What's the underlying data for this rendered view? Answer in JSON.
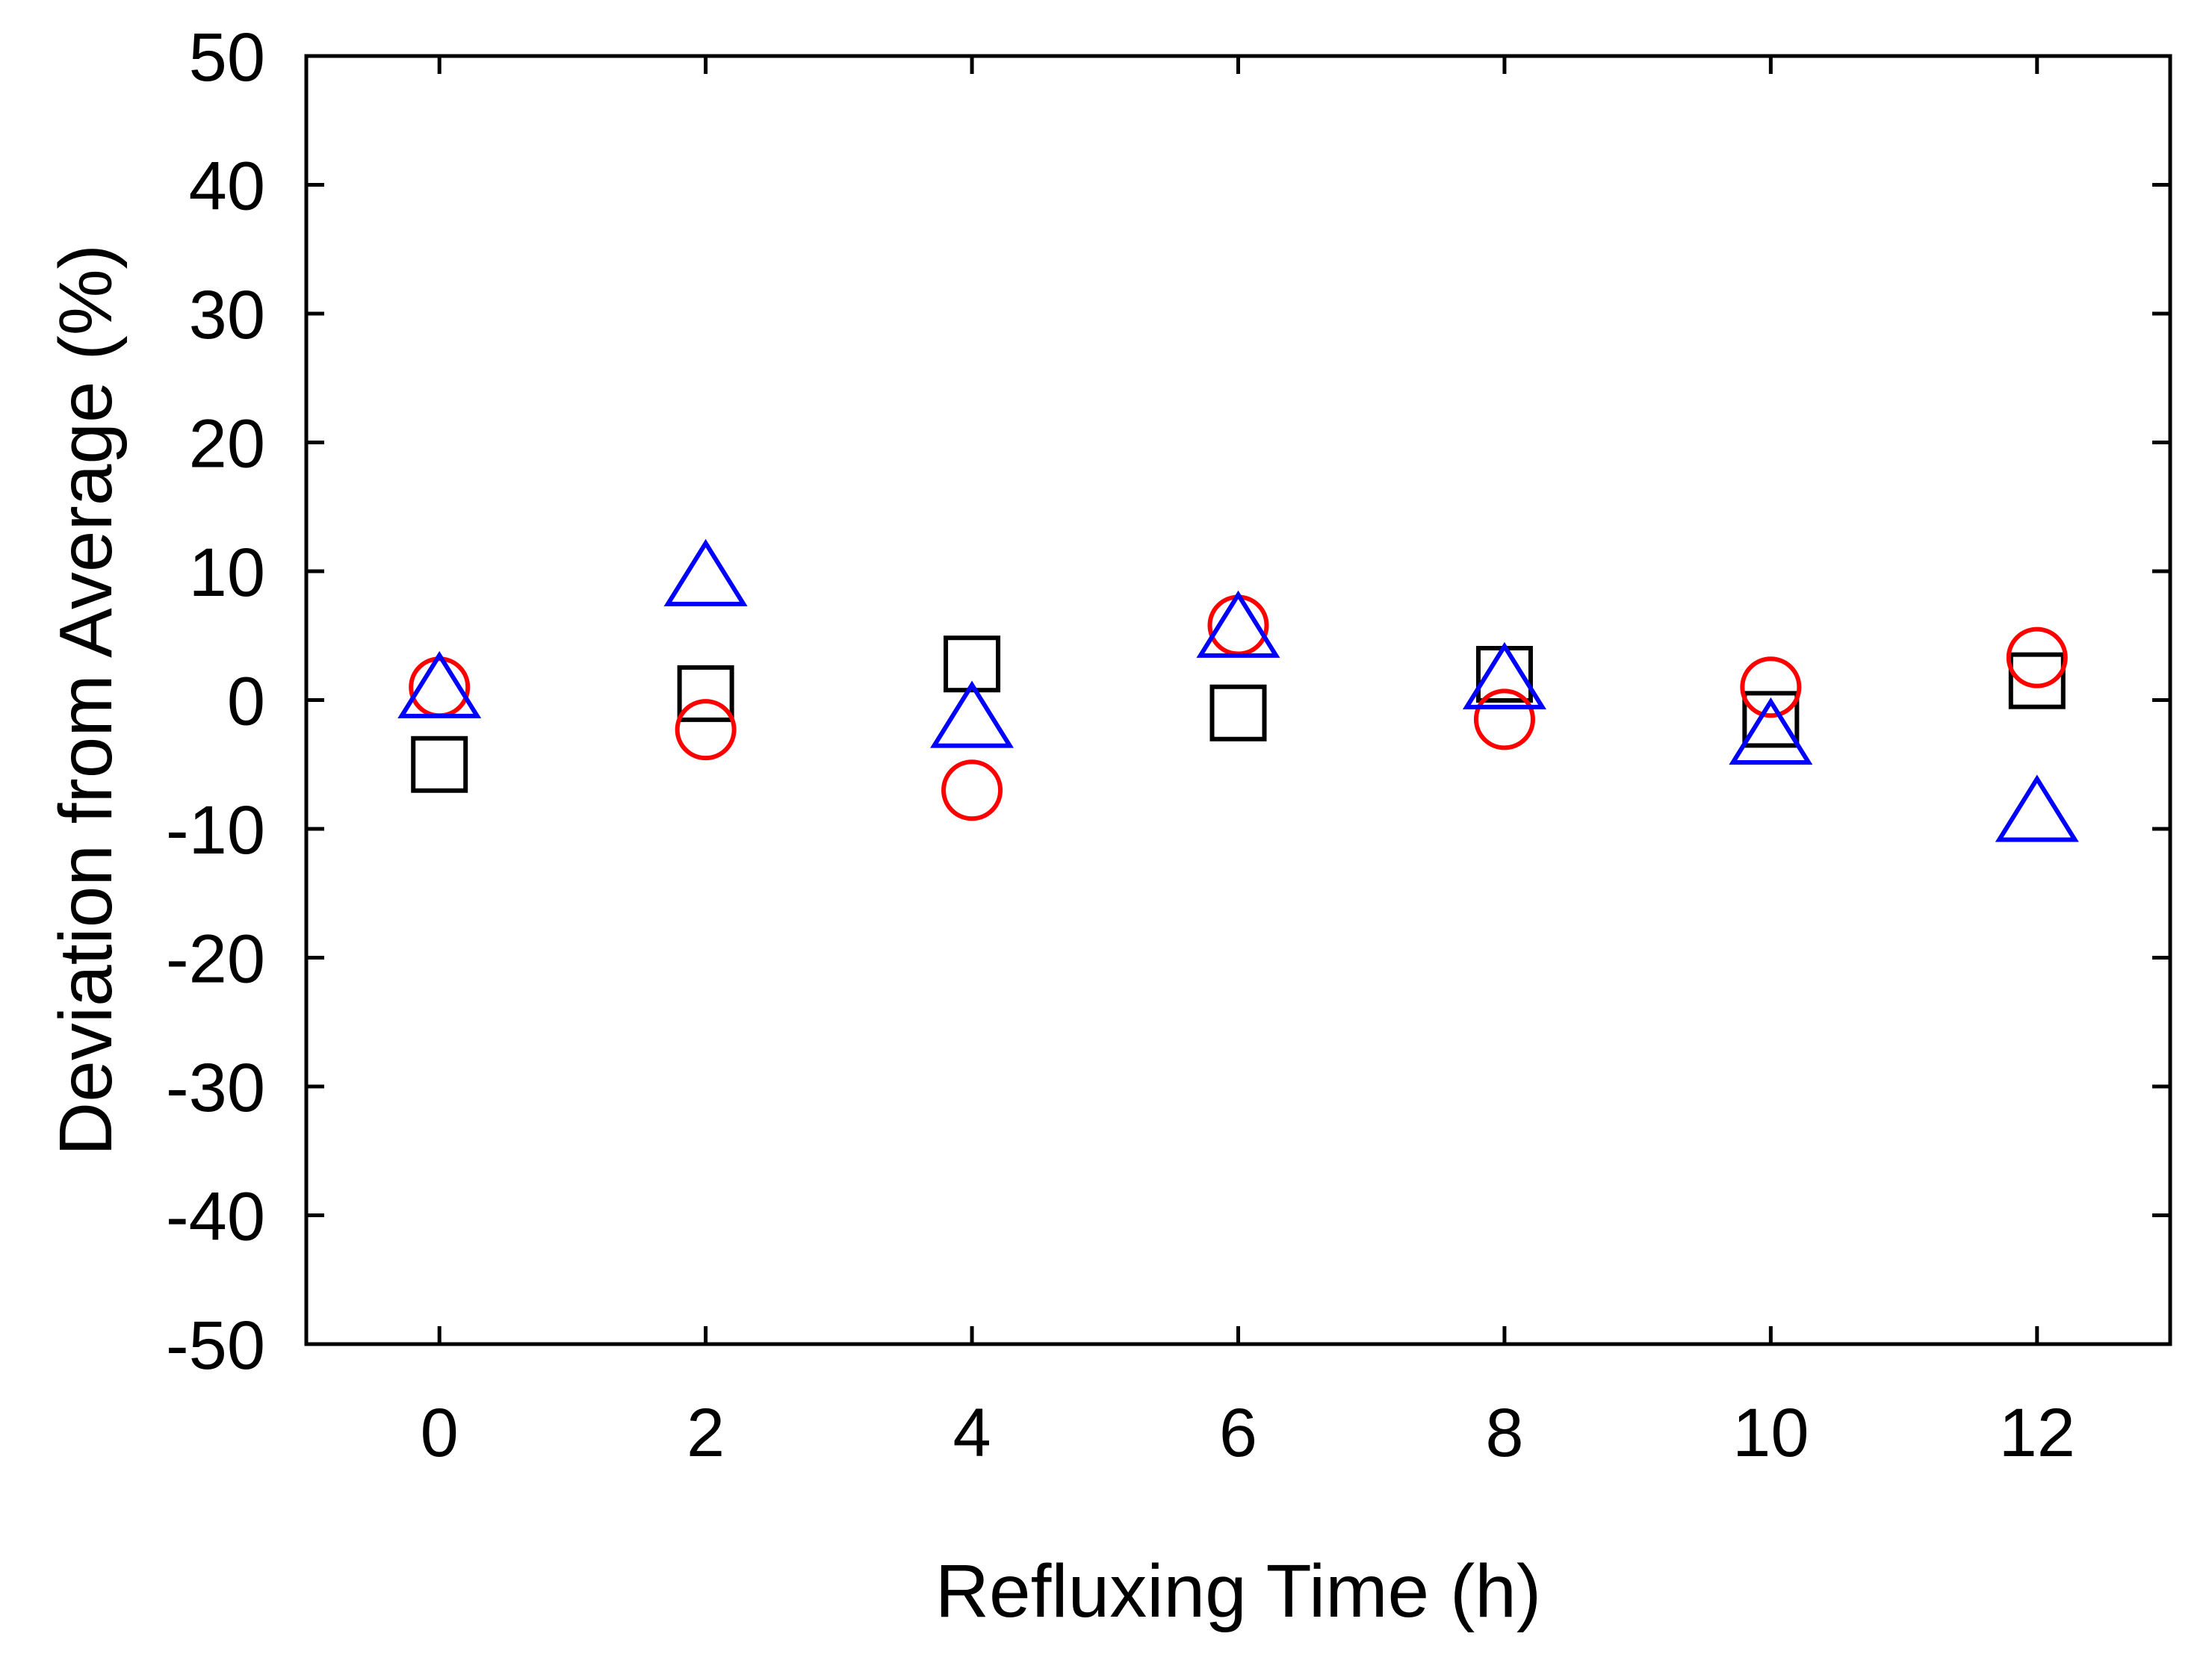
{
  "chart_data": {
    "type": "scatter",
    "title": "",
    "xlabel": "Refluxing Time (h)",
    "ylabel": "Deviation from Average (%)",
    "xlim": [
      -1,
      13
    ],
    "ylim": [
      -50,
      50
    ],
    "x_ticks": [
      0,
      2,
      4,
      6,
      8,
      10,
      12
    ],
    "y_ticks": [
      -50,
      -40,
      -30,
      -20,
      -10,
      0,
      10,
      20,
      30,
      40,
      50
    ],
    "grid": false,
    "legend": "none",
    "series": [
      {
        "marker": "square",
        "color": "#000000",
        "x": [
          0,
          2,
          4,
          6,
          8,
          10,
          12
        ],
        "y": [
          -5,
          0.5,
          2.8,
          -1,
          2,
          -1.5,
          1.5
        ]
      },
      {
        "marker": "circle",
        "color": "#ff0000",
        "x": [
          0,
          2,
          4,
          6,
          8,
          10,
          12
        ],
        "y": [
          1,
          -2.3,
          -7,
          5.8,
          -1.5,
          1,
          3.3
        ]
      },
      {
        "marker": "triangle",
        "color": "#0000ff",
        "x": [
          0,
          2,
          4,
          6,
          8,
          10,
          12
        ],
        "y": [
          0.8,
          9.5,
          -1.5,
          5.5,
          1.5,
          -2.8,
          -8.8
        ]
      }
    ]
  }
}
